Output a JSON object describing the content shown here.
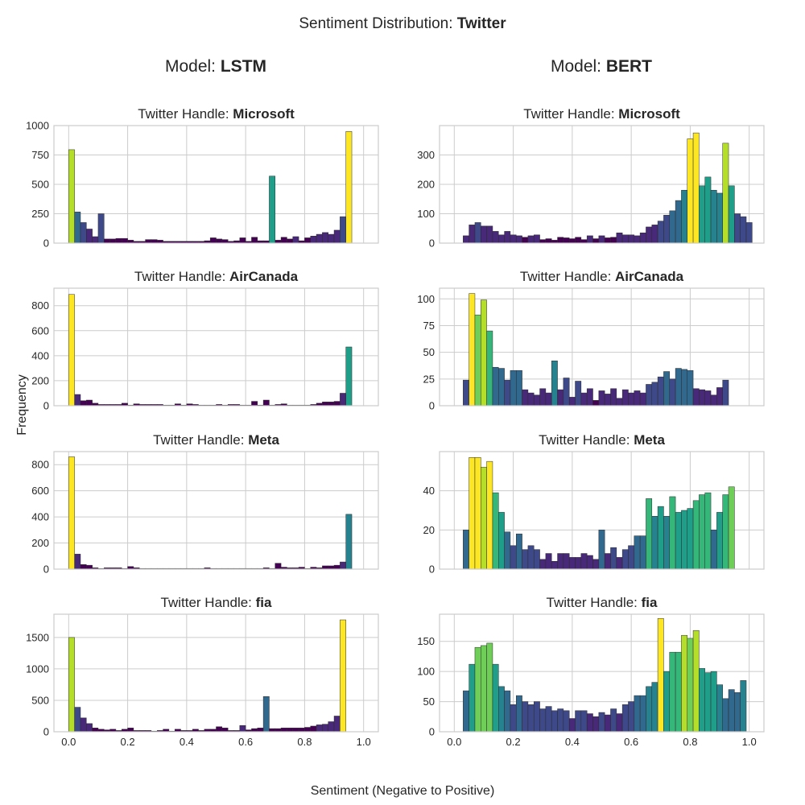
{
  "figure": {
    "title_prefix": "Sentiment Distribution: ",
    "title_bold": "Twitter",
    "xlabel": "Sentiment (Negative to Positive)",
    "ylabel": "Frequency"
  },
  "columns": [
    {
      "prefix": "Model: ",
      "bold": "LSTM"
    },
    {
      "prefix": "Model: ",
      "bold": "BERT"
    }
  ],
  "colors": {
    "grid": "#cccccc",
    "spine": "#cccccc",
    "bar_edge": "#2b2b2b",
    "palette": [
      "#440154",
      "#482878",
      "#3e4989",
      "#31688e",
      "#26828e",
      "#1f9e89",
      "#35b779",
      "#6ece58",
      "#b5de2b",
      "#fde725"
    ]
  },
  "chart_data": [
    {
      "type": "bar",
      "model": "LSTM",
      "handle_prefix": "Twitter Handle: ",
      "handle": "Microsoft",
      "xlim": [
        -0.05,
        1.05
      ],
      "ylim": [
        0,
        1000
      ],
      "bin_start": 0.0,
      "bin_width": 0.02,
      "xticks": [
        0.0,
        0.2,
        0.4,
        0.6,
        0.8,
        1.0
      ],
      "yticks": [
        0,
        250,
        500,
        750,
        1000
      ],
      "ytick_labels": [
        "0",
        "250",
        "500",
        "750",
        "1000"
      ],
      "values": [
        795,
        265,
        175,
        120,
        55,
        250,
        35,
        35,
        40,
        40,
        25,
        15,
        15,
        30,
        30,
        25,
        15,
        15,
        15,
        15,
        15,
        15,
        15,
        20,
        45,
        35,
        30,
        15,
        20,
        45,
        15,
        50,
        20,
        20,
        570,
        25,
        50,
        35,
        55,
        20,
        45,
        60,
        75,
        90,
        75,
        110,
        225,
        950
      ]
    },
    {
      "type": "bar",
      "model": "BERT",
      "handle_prefix": "Twitter Handle: ",
      "handle": "Microsoft",
      "xlim": [
        -0.05,
        1.05
      ],
      "ylim": [
        0,
        400
      ],
      "bin_start": 0.03,
      "bin_width": 0.02,
      "xticks": [
        0.0,
        0.2,
        0.4,
        0.6,
        0.8,
        1.0
      ],
      "yticks": [
        0,
        100,
        200,
        300
      ],
      "ytick_labels": [
        "0",
        "100",
        "200",
        "300"
      ],
      "values": [
        25,
        62,
        70,
        58,
        58,
        40,
        28,
        40,
        28,
        25,
        20,
        25,
        28,
        12,
        15,
        10,
        20,
        18,
        15,
        20,
        12,
        25,
        15,
        25,
        18,
        20,
        35,
        28,
        28,
        25,
        35,
        55,
        62,
        75,
        95,
        110,
        145,
        180,
        355,
        375,
        195,
        225,
        180,
        170,
        340,
        195,
        100,
        90,
        70
      ]
    },
    {
      "type": "bar",
      "model": "LSTM",
      "handle_prefix": "Twitter Handle: ",
      "handle": "AirCanada",
      "xlim": [
        -0.05,
        1.05
      ],
      "ylim": [
        0,
        940
      ],
      "bin_start": 0.0,
      "bin_width": 0.02,
      "xticks": [
        0.0,
        0.2,
        0.4,
        0.6,
        0.8,
        1.0
      ],
      "yticks": [
        0,
        200,
        400,
        600,
        800
      ],
      "ytick_labels": [
        "0",
        "200",
        "400",
        "600",
        "800"
      ],
      "values": [
        890,
        90,
        40,
        45,
        20,
        10,
        10,
        10,
        10,
        20,
        5,
        15,
        10,
        10,
        10,
        10,
        5,
        5,
        15,
        5,
        15,
        10,
        5,
        5,
        5,
        10,
        5,
        10,
        10,
        5,
        5,
        35,
        5,
        45,
        5,
        10,
        15,
        5,
        5,
        5,
        5,
        10,
        20,
        30,
        30,
        35,
        100,
        470
      ]
    },
    {
      "type": "bar",
      "model": "BERT",
      "handle_prefix": "Twitter Handle: ",
      "handle": "AirCanada",
      "xlim": [
        -0.05,
        1.05
      ],
      "ylim": [
        0,
        110
      ],
      "bin_start": 0.03,
      "bin_width": 0.02,
      "xticks": [
        0.0,
        0.2,
        0.4,
        0.6,
        0.8,
        1.0
      ],
      "yticks": [
        0,
        25,
        50,
        75,
        100
      ],
      "ytick_labels": [
        "0",
        "25",
        "50",
        "75",
        "100"
      ],
      "values": [
        24,
        105,
        85,
        99,
        70,
        36,
        35,
        24,
        33,
        33,
        15,
        12,
        10,
        16,
        12,
        42,
        15,
        26,
        8,
        23,
        12,
        16,
        5,
        14,
        11,
        16,
        7,
        15,
        12,
        14,
        12,
        20,
        22,
        27,
        32,
        25,
        35,
        34,
        33,
        16,
        15,
        14,
        10,
        17,
        24
      ]
    },
    {
      "type": "bar",
      "model": "LSTM",
      "handle_prefix": "Twitter Handle: ",
      "handle": "Meta",
      "xlim": [
        -0.05,
        1.05
      ],
      "ylim": [
        0,
        900
      ],
      "bin_start": 0.0,
      "bin_width": 0.02,
      "xticks": [
        0.0,
        0.2,
        0.4,
        0.6,
        0.8,
        1.0
      ],
      "yticks": [
        0,
        200,
        400,
        600,
        800
      ],
      "ytick_labels": [
        "0",
        "200",
        "400",
        "600",
        "800"
      ],
      "values": [
        860,
        115,
        35,
        30,
        10,
        5,
        10,
        10,
        10,
        5,
        20,
        10,
        5,
        5,
        5,
        5,
        5,
        5,
        5,
        5,
        5,
        5,
        5,
        10,
        5,
        5,
        5,
        5,
        5,
        5,
        5,
        5,
        5,
        10,
        5,
        45,
        15,
        10,
        10,
        15,
        5,
        15,
        10,
        25,
        25,
        30,
        55,
        420
      ]
    },
    {
      "type": "bar",
      "model": "BERT",
      "handle_prefix": "Twitter Handle: ",
      "handle": "Meta",
      "xlim": [
        -0.05,
        1.05
      ],
      "ylim": [
        0,
        60
      ],
      "bin_start": 0.03,
      "bin_width": 0.02,
      "xticks": [
        0.0,
        0.2,
        0.4,
        0.6,
        0.8,
        1.0
      ],
      "yticks": [
        0,
        20,
        40
      ],
      "ytick_labels": [
        "0",
        "20",
        "40"
      ],
      "values": [
        20,
        57,
        57,
        52,
        55,
        39,
        29,
        19,
        12,
        18,
        10,
        12,
        10,
        5,
        8,
        4,
        8,
        8,
        6,
        6,
        8,
        7,
        5,
        20,
        8,
        11,
        6,
        10,
        12,
        17,
        17,
        36,
        27,
        32,
        27,
        37,
        29,
        30,
        31,
        35,
        38,
        39,
        20,
        29,
        38,
        42
      ]
    },
    {
      "type": "bar",
      "model": "LSTM",
      "handle_prefix": "Twitter Handle: ",
      "handle": "fia",
      "xlim": [
        -0.05,
        1.05
      ],
      "ylim": [
        0,
        1870
      ],
      "bin_start": 0.0,
      "bin_width": 0.02,
      "xticks": [
        0.0,
        0.2,
        0.4,
        0.6,
        0.8,
        1.0
      ],
      "xtick_labels": [
        "0.0",
        "0.2",
        "0.4",
        "0.6",
        "0.8",
        "1.0"
      ],
      "yticks": [
        0,
        500,
        1000,
        1500
      ],
      "ytick_labels": [
        "0",
        "500",
        "1000",
        "1500"
      ],
      "values": [
        1500,
        390,
        220,
        130,
        60,
        40,
        30,
        40,
        20,
        40,
        60,
        20,
        20,
        20,
        10,
        20,
        40,
        10,
        40,
        20,
        20,
        40,
        20,
        40,
        40,
        80,
        60,
        20,
        20,
        100,
        30,
        50,
        60,
        560,
        50,
        50,
        60,
        60,
        60,
        60,
        70,
        90,
        110,
        120,
        160,
        250,
        1780
      ]
    },
    {
      "type": "bar",
      "model": "BERT",
      "handle_prefix": "Twitter Handle: ",
      "handle": "fia",
      "xlim": [
        -0.05,
        1.05
      ],
      "ylim": [
        0,
        195
      ],
      "bin_start": 0.03,
      "bin_width": 0.02,
      "xticks": [
        0.0,
        0.2,
        0.4,
        0.6,
        0.8,
        1.0
      ],
      "xtick_labels": [
        "0.0",
        "0.2",
        "0.4",
        "0.6",
        "0.8",
        "1.0"
      ],
      "yticks": [
        0,
        50,
        100,
        150
      ],
      "ytick_labels": [
        "0",
        "50",
        "100",
        "150"
      ],
      "values": [
        68,
        112,
        140,
        143,
        147,
        112,
        75,
        68,
        45,
        60,
        50,
        45,
        50,
        38,
        42,
        35,
        38,
        35,
        22,
        35,
        35,
        30,
        25,
        32,
        28,
        38,
        30,
        45,
        50,
        60,
        60,
        75,
        82,
        188,
        100,
        132,
        132,
        160,
        155,
        168,
        105,
        98,
        100,
        78,
        55,
        70,
        65,
        85
      ]
    }
  ]
}
